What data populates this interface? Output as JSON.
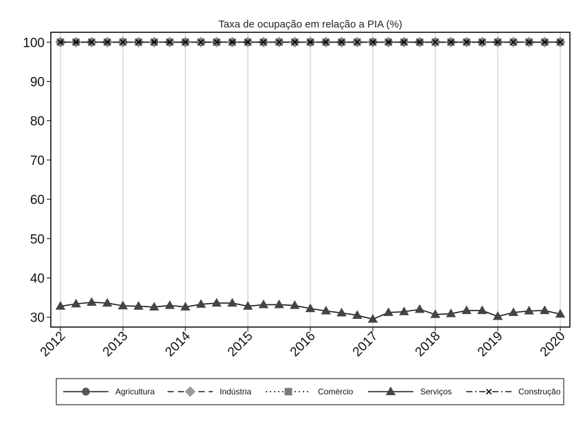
{
  "chart_data": {
    "type": "line",
    "title": "Taxa de ocupação em relação a PIA (%)",
    "xlabel": "",
    "ylabel": "",
    "x_ticks": [
      "2012",
      "2013",
      "2014",
      "2015",
      "2016",
      "2017",
      "2018",
      "2019",
      "2020"
    ],
    "y_ticks": [
      "30",
      "40",
      "50",
      "60",
      "70",
      "80",
      "90",
      "100"
    ],
    "ylim": [
      27.5,
      102.5
    ],
    "xlim": [
      2012,
      2020
    ],
    "grid": "vertical at years",
    "legend_position": "bottom",
    "x": [
      2012.0,
      2012.25,
      2012.5,
      2012.75,
      2013.0,
      2013.25,
      2013.5,
      2013.75,
      2014.0,
      2014.25,
      2014.5,
      2014.75,
      2015.0,
      2015.25,
      2015.5,
      2015.75,
      2016.0,
      2016.25,
      2016.5,
      2016.75,
      2017.0,
      2017.25,
      2017.5,
      2017.75,
      2018.0,
      2018.25,
      2018.5,
      2018.75,
      2019.0,
      2019.25,
      2019.5,
      2019.75,
      2020.0
    ],
    "series": [
      {
        "name": "Agricultura",
        "marker": "circle",
        "dash": "solid",
        "values": [
          100,
          100,
          100,
          100,
          100,
          100,
          100,
          100,
          100,
          100,
          100,
          100,
          100,
          100,
          100,
          100,
          100,
          100,
          100,
          100,
          100,
          100,
          100,
          100,
          100,
          100,
          100,
          100,
          100,
          100,
          100,
          100,
          100
        ]
      },
      {
        "name": "Indústria",
        "marker": "diamond",
        "dash": "longdash",
        "values": [
          100,
          100,
          100,
          100,
          100,
          100,
          100,
          100,
          100,
          100,
          100,
          100,
          100,
          100,
          100,
          100,
          100,
          100,
          100,
          100,
          100,
          100,
          100,
          100,
          100,
          100,
          100,
          100,
          100,
          100,
          100,
          100,
          100
        ]
      },
      {
        "name": "Comércio",
        "marker": "square",
        "dash": "dot",
        "values": [
          100,
          100,
          100,
          100,
          100,
          100,
          100,
          100,
          100,
          100,
          100,
          100,
          100,
          100,
          100,
          100,
          100,
          100,
          100,
          100,
          100,
          100,
          100,
          100,
          100,
          100,
          100,
          100,
          100,
          100,
          100,
          100,
          100
        ]
      },
      {
        "name": "Serviços",
        "marker": "triangle",
        "dash": "solid",
        "values": [
          32.8,
          33.4,
          33.8,
          33.6,
          32.9,
          32.8,
          32.6,
          33.0,
          32.6,
          33.3,
          33.6,
          33.6,
          32.8,
          33.2,
          33.2,
          33.0,
          32.2,
          31.6,
          31.1,
          30.5,
          29.5,
          31.2,
          31.4,
          32.0,
          30.7,
          30.9,
          31.7,
          31.7,
          30.2,
          31.2,
          31.6,
          31.7,
          30.8
        ]
      },
      {
        "name": "Construção",
        "marker": "x",
        "dash": "dashdot",
        "values": [
          100,
          100,
          100,
          100,
          100,
          100,
          100,
          100,
          100,
          100,
          100,
          100,
          100,
          100,
          100,
          100,
          100,
          100,
          100,
          100,
          100,
          100,
          100,
          100,
          100,
          100,
          100,
          100,
          100,
          100,
          100,
          100,
          100
        ]
      }
    ],
    "colors": {
      "line": "#1a1a1a",
      "marker": "#555555",
      "grid": "#d9d9d9"
    }
  }
}
